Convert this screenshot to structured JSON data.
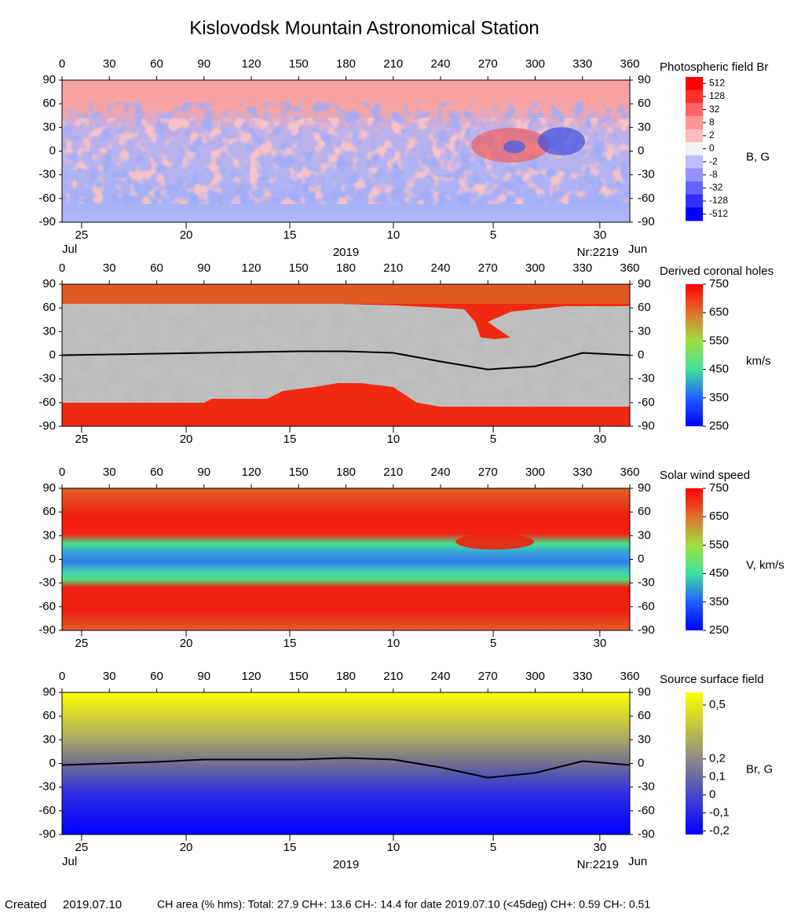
{
  "title": "Kislovodsk Mountain Astronomical Station",
  "footer": {
    "created_label": "Created",
    "created_date": "2019.07.10",
    "text": "CH area (% hms): Total: 27.9 CH+: 13.6   CH-: 14.4 for date 2019.07.10 (<45deg) CH+: 0.59    CH-: 0.51"
  },
  "chart_data": [
    {
      "type": "heatmap",
      "title": "Photospheric field Br",
      "colorbar_label": "B, G",
      "xlim": [
        0,
        360
      ],
      "xticks": [
        0,
        30,
        60,
        90,
        120,
        150,
        180,
        210,
        240,
        270,
        300,
        330,
        360
      ],
      "ylim": [
        -90,
        90
      ],
      "yticks": [
        90,
        60,
        30,
        0,
        -30,
        -60,
        -90
      ],
      "date_ticks": [
        {
          "value": 12.4,
          "label": "25"
        },
        {
          "value": 78.7,
          "label": "20"
        },
        {
          "value": 144.4,
          "label": "15"
        },
        {
          "value": 210.1,
          "label": "10"
        },
        {
          "value": 273.4,
          "label": "5"
        },
        {
          "value": 341,
          "label": "30"
        }
      ],
      "date_extra": {
        "start_month": "Jul",
        "year": "2019",
        "rotation": "Nr:2219",
        "end_month": "Jun"
      },
      "colorbar_scale": "discrete",
      "colorbar_ticks": [
        512,
        128,
        32,
        8,
        2,
        0,
        -2,
        -8,
        -32,
        -128,
        -512
      ],
      "colorbar_colors": [
        "#ff0000",
        "#ff3030",
        "#ff6464",
        "#ff9494",
        "#ffbcbc",
        "#f2f2f2",
        "#bcbcff",
        "#9494ff",
        "#6464ff",
        "#3030ff",
        "#0000ff"
      ]
    },
    {
      "type": "heatmap",
      "title": "Derived coronal holes",
      "colorbar_label": "km/s",
      "xlim": [
        0,
        360
      ],
      "xticks": [
        0,
        30,
        60,
        90,
        120,
        150,
        180,
        210,
        240,
        270,
        300,
        330,
        360
      ],
      "ylim": [
        -90,
        90
      ],
      "yticks": [
        90,
        60,
        30,
        0,
        -30,
        -60,
        -90
      ],
      "date_ticks": [
        {
          "value": 12.4,
          "label": "25"
        },
        {
          "value": 78.7,
          "label": "20"
        },
        {
          "value": 144.4,
          "label": "15"
        },
        {
          "value": 210.1,
          "label": "10"
        },
        {
          "value": 273.4,
          "label": "5"
        },
        {
          "value": 341,
          "label": "30"
        }
      ],
      "colorbar_scale": "linear",
      "clim": [
        250,
        750
      ],
      "colorbar_ticks": [
        750,
        650,
        550,
        450,
        350,
        250
      ],
      "line": {
        "color": "#000000",
        "x": [
          0,
          30,
          60,
          90,
          120,
          150,
          180,
          210,
          240,
          270,
          300,
          330,
          360
        ],
        "values": [
          0,
          1,
          2,
          3,
          4,
          5,
          5,
          3,
          -8,
          -18,
          -14,
          3,
          0
        ]
      }
    },
    {
      "type": "heatmap",
      "title": "Solar wind speed",
      "colorbar_label": "V, km/s",
      "xlim": [
        0,
        360
      ],
      "xticks": [
        0,
        30,
        60,
        90,
        120,
        150,
        180,
        210,
        240,
        270,
        300,
        330,
        360
      ],
      "ylim": [
        -90,
        90
      ],
      "yticks": [
        90,
        60,
        30,
        0,
        -30,
        -60,
        -90
      ],
      "date_ticks": [
        {
          "value": 12.4,
          "label": "25"
        },
        {
          "value": 78.7,
          "label": "20"
        },
        {
          "value": 144.4,
          "label": "15"
        },
        {
          "value": 210.1,
          "label": "10"
        },
        {
          "value": 273.4,
          "label": "5"
        },
        {
          "value": 341,
          "label": "30"
        }
      ],
      "colorbar_scale": "linear",
      "clim": [
        250,
        750
      ],
      "colorbar_ticks": [
        750,
        650,
        550,
        450,
        350,
        250
      ]
    },
    {
      "type": "heatmap",
      "title": "Source surface field",
      "colorbar_label": "Br, G",
      "xlim": [
        0,
        360
      ],
      "xticks": [
        0,
        30,
        60,
        90,
        120,
        150,
        180,
        210,
        240,
        270,
        300,
        330,
        360
      ],
      "ylim": [
        -90,
        90
      ],
      "yticks": [
        90,
        60,
        30,
        0,
        -30,
        -60,
        -90
      ],
      "date_ticks": [
        {
          "value": 12.4,
          "label": "25"
        },
        {
          "value": 78.7,
          "label": "20"
        },
        {
          "value": 144.4,
          "label": "15"
        },
        {
          "value": 210.1,
          "label": "10"
        },
        {
          "value": 273.4,
          "label": "5"
        },
        {
          "value": 341,
          "label": "30"
        }
      ],
      "date_extra": {
        "start_month": "Jul",
        "year": "2019",
        "rotation": "Nr:2219",
        "end_month": "Jun"
      },
      "colorbar_scale": "linear",
      "clim": [
        -0.22,
        0.57
      ],
      "colorbar_ticks": [
        {
          "value": 0.5,
          "label": "0,5"
        },
        {
          "value": 0.2,
          "label": "0,2"
        },
        {
          "value": 0.1,
          "label": "0,1"
        },
        0,
        {
          "value": -0.1,
          "label": "-0,1"
        },
        {
          "value": -0.2,
          "label": "-0,2"
        }
      ],
      "line": {
        "color": "#000000",
        "x": [
          0,
          30,
          60,
          90,
          120,
          150,
          180,
          210,
          240,
          270,
          300,
          330,
          360
        ],
        "values": [
          -2,
          0,
          2,
          5,
          5,
          5,
          7,
          5,
          -5,
          -18,
          -12,
          3,
          -2
        ]
      }
    }
  ]
}
